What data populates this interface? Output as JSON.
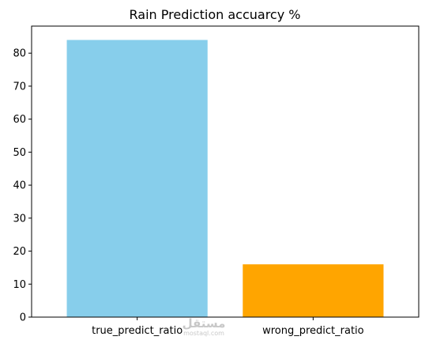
{
  "chart_data": {
    "type": "bar",
    "title": "Rain Prediction accuarcy %",
    "xlabel": "",
    "ylabel": "",
    "categories": [
      "true_predict_ratio",
      "wrong_predict_ratio"
    ],
    "values": [
      84,
      16
    ],
    "colors": [
      "#87ceeb",
      "#ffa500"
    ],
    "ylim": [
      0,
      88.2
    ],
    "yticks": [
      0,
      10,
      20,
      30,
      40,
      50,
      60,
      70,
      80
    ],
    "grid": false,
    "legend": "none"
  },
  "watermark": {
    "arabic": "مستقل",
    "latin": "mostaql.com"
  }
}
